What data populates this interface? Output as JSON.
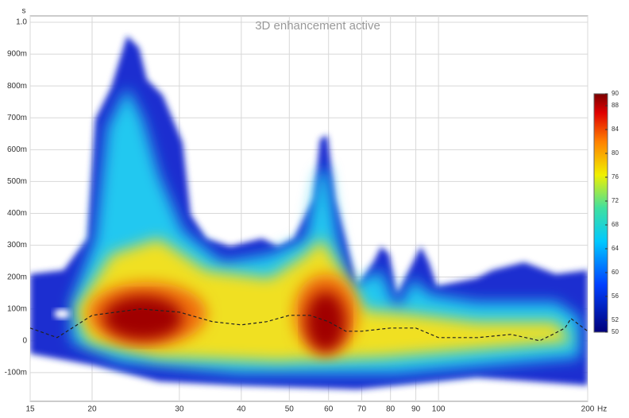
{
  "chart_data": {
    "type": "spectrogram",
    "title": "3D enhancement active",
    "x_unit": "Hz",
    "y_unit": "s",
    "log_x": true,
    "grid": true,
    "xlim": [
      15,
      200
    ],
    "ylim": [
      -0.19,
      1.02
    ],
    "xticks": [
      15,
      20,
      30,
      40,
      50,
      60,
      70,
      80,
      90,
      100,
      200
    ],
    "yticks": [
      {
        "value": 1,
        "label": "1.0"
      },
      {
        "value": 0.9,
        "label": "900m"
      },
      {
        "value": 0.8,
        "label": "800m"
      },
      {
        "value": 0.7,
        "label": "700m"
      },
      {
        "value": 0.6,
        "label": "600m"
      },
      {
        "value": 0.5,
        "label": "500m"
      },
      {
        "value": 0.4,
        "label": "400m"
      },
      {
        "value": 0.3,
        "label": "300m"
      },
      {
        "value": 0.2,
        "label": "200m"
      },
      {
        "value": 0.1,
        "label": "100m"
      },
      0,
      {
        "value": -0.1,
        "label": "-100m"
      }
    ],
    "colorbar": {
      "lim": [
        50,
        90
      ],
      "ticks": [
        50,
        52,
        56,
        60,
        64,
        68,
        72,
        76,
        80,
        84,
        88,
        90
      ]
    },
    "series": [
      {
        "color": "#222222",
        "x": [
          15,
          17,
          20,
          25,
          30,
          35,
          40,
          45,
          50,
          55,
          60,
          65,
          70,
          80,
          90,
          100,
          120,
          140,
          150,
          160,
          170,
          180,
          185,
          200
        ],
        "values": [
          0.04,
          0.01,
          0.08,
          0.1,
          0.09,
          0.06,
          0.05,
          0.06,
          0.08,
          0.08,
          0.06,
          0.03,
          0.03,
          0.04,
          0.04,
          0.01,
          0.01,
          0.02,
          0.01,
          0.0,
          0.02,
          0.04,
          0.07,
          0.03
        ]
      }
    ]
  }
}
